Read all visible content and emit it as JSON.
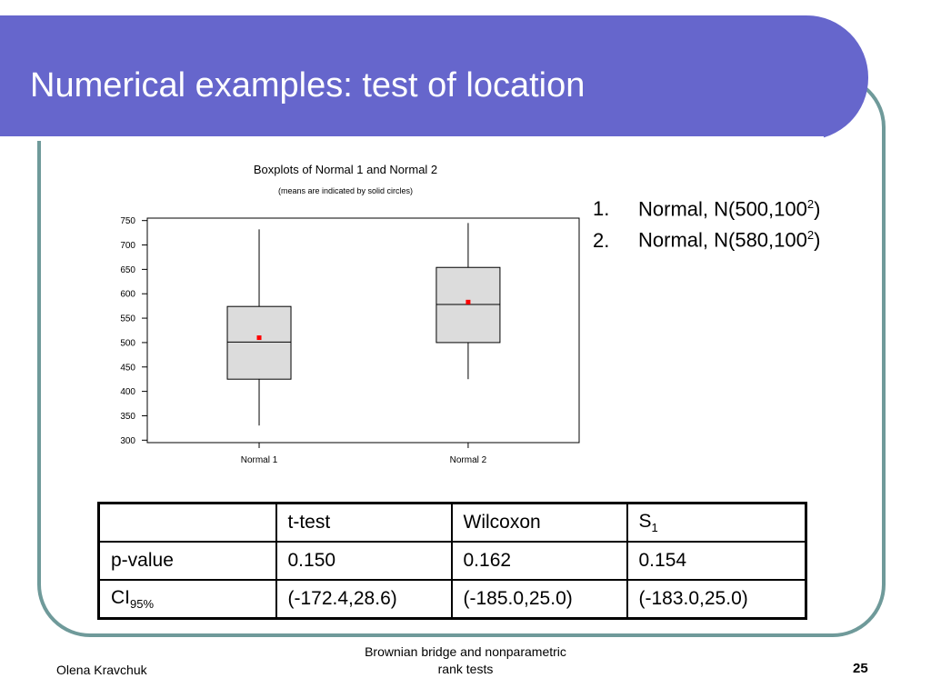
{
  "slide": {
    "title": "Numerical examples: test of location",
    "colors": {
      "title_bar": "#6666cc",
      "frame": "#6f9a9a",
      "title_text": "#ffffff"
    }
  },
  "chart_data": {
    "type": "boxplot",
    "title": "Boxplots of Normal 1 and Normal 2",
    "subtitle": "(means are indicated by solid circles)",
    "categories": [
      "Normal 1",
      "Normal 2"
    ],
    "ylim": [
      295,
      755
    ],
    "yticks": [
      300,
      350,
      400,
      450,
      500,
      550,
      600,
      650,
      700,
      750
    ],
    "boxes": [
      {
        "name": "Normal 1",
        "min": 330,
        "q1": 425,
        "median": 501,
        "q3": 574,
        "max": 732,
        "mean": 510
      },
      {
        "name": "Normal 2",
        "min": 425,
        "q1": 500,
        "median": 578,
        "q3": 654,
        "max": 745,
        "mean": 583
      }
    ],
    "colors": {
      "box_fill": "#dcdcdc",
      "mean_marker": "#ff0000",
      "line": "#000000"
    }
  },
  "legend": {
    "items": [
      {
        "number": "1.",
        "text": "Normal, N(500,100",
        "power": "2",
        "close": ")"
      },
      {
        "number": "2.",
        "text": "Normal, N(580,100",
        "power": "2",
        "close": ")"
      }
    ]
  },
  "table": {
    "header": {
      "blank": "",
      "c1": "t-test",
      "c2": "Wilcoxon",
      "c3_main": "S",
      "c3_sub": "1"
    },
    "pvalue_row": {
      "label": "p-value",
      "c1": "0.150",
      "c2": "0.162",
      "c3": "0.154"
    },
    "ci_row": {
      "label_main": "CI",
      "label_sub": "95%",
      "c1": "(-172.4,28.6)",
      "c2": "(-185.0,25.0)",
      "c3": "(-183.0,25.0)"
    }
  },
  "footer": {
    "author": "Olena Kravchuk",
    "course_line1": "Brownian bridge and nonparametric",
    "course_line2": "rank tests",
    "page": "25"
  }
}
